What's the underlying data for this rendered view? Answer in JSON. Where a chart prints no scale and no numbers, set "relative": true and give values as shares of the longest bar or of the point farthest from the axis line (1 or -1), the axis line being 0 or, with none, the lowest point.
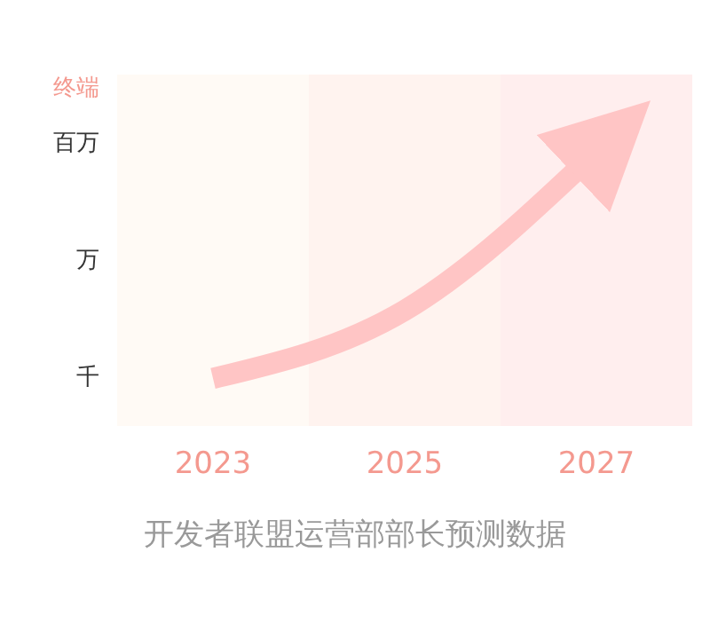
{
  "chart_data": {
    "type": "line",
    "ylabel": "终端",
    "relative": true,
    "categories": [
      "2023",
      "2025",
      "2027"
    ],
    "series": [
      {
        "color": "#ffc5c5",
        "values": [
          0,
          0.3,
          1
        ]
      }
    ],
    "bands": [
      {
        "axis": "x",
        "from": "2023",
        "to": "2023",
        "color": "#fffaf5"
      },
      {
        "axis": "x",
        "from": "2025",
        "to": "2025",
        "color": "#fff3ef"
      },
      {
        "axis": "x",
        "from": "2027",
        "to": "2027",
        "color": "#ffeeee"
      }
    ],
    "marker": "none",
    "line_style": "solid",
    "annotations": [
      "千",
      "万",
      "百万",
      "开发者联盟运营部部长预测数据"
    ]
  }
}
